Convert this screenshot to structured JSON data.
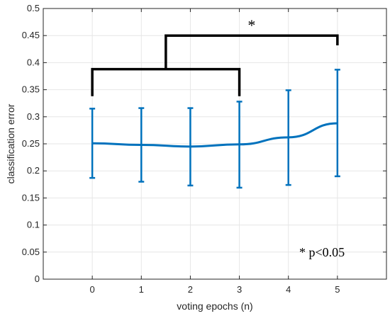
{
  "chart_data": {
    "type": "line",
    "title": "",
    "xlabel": "voting epochs (n)",
    "ylabel": "classification error",
    "xlim": [
      -1,
      6
    ],
    "ylim": [
      0,
      0.5
    ],
    "x_ticks": [
      0,
      1,
      2,
      3,
      4,
      5
    ],
    "y_ticks": [
      0,
      0.05,
      0.1,
      0.15,
      0.2,
      0.25,
      0.3,
      0.35,
      0.4,
      0.45,
      0.5
    ],
    "y_tick_labels": [
      "0",
      "0.05",
      "0.1",
      "0.15",
      "0.2",
      "0.25",
      "0.3",
      "0.35",
      "0.4",
      "0.45",
      "0.5"
    ],
    "grid": true,
    "series": [
      {
        "x": [
          0,
          1,
          2,
          3,
          4,
          5
        ],
        "values": [
          0.251,
          0.248,
          0.245,
          0.249,
          0.262,
          0.288
        ],
        "error_low": [
          0.187,
          0.18,
          0.173,
          0.169,
          0.174,
          0.19
        ],
        "error_high": [
          0.315,
          0.316,
          0.316,
          0.328,
          0.349,
          0.387
        ],
        "color": "#0072BD"
      }
    ],
    "significance": {
      "star_label": "*",
      "note": "* p<0.05",
      "inner_bracket": {
        "from_x": 0,
        "to_x": 3,
        "top_y": 0.388,
        "leg_bottom_y": 0.338
      },
      "outer_bracket": {
        "from_x": 2,
        "to_x": 5,
        "top_y": 0.45,
        "right_leg_bottom_y": 0.432
      },
      "color": "#000000"
    }
  }
}
